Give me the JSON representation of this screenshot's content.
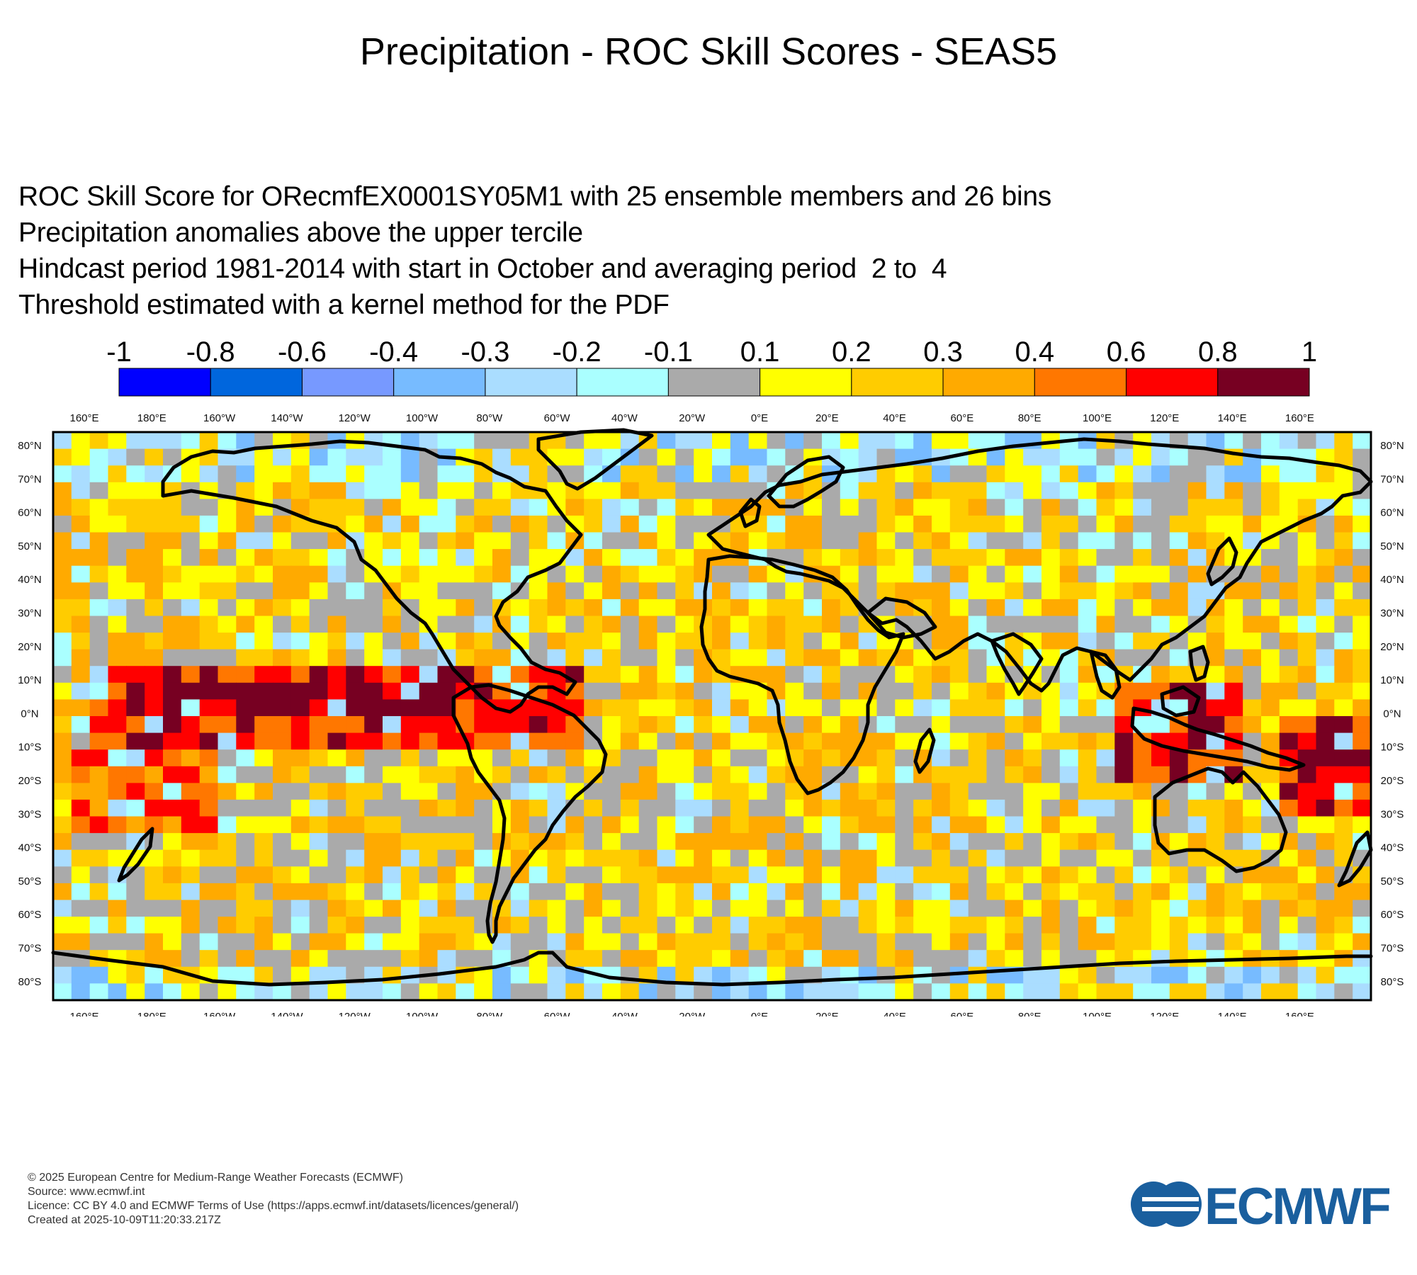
{
  "header": {
    "title": "Precipitation - ROC Skill Scores - SEAS5"
  },
  "description": {
    "line1": "ROC Skill Score for ORecmfEX0001SY05M1 with 25 ensemble members and 26 bins",
    "line2": "Precipitation anomalies above the upper tercile",
    "line3": "Hindcast period 1981-2014 with start in October and averaging period  2 to  4",
    "line4": "Threshold estimated with a kernel method for the PDF"
  },
  "legend": {
    "boundaries": [
      "-1",
      "-0.8",
      "-0.6",
      "-0.4",
      "-0.3",
      "-0.2",
      "-0.1",
      "0.1",
      "0.2",
      "0.3",
      "0.4",
      "0.6",
      "0.8",
      "1"
    ],
    "colors": [
      "#0000ff",
      "#0066dd",
      "#7799ff",
      "#77bbff",
      "#aaddff",
      "#aaffff",
      "#aaaaaa",
      "#ffff00",
      "#ffcc00",
      "#ffaa00",
      "#ff7700",
      "#ff0000",
      "#770022"
    ]
  },
  "axes": {
    "lon_labels": [
      "160°E",
      "180°E",
      "160°W",
      "140°W",
      "120°W",
      "100°W",
      "80°W",
      "60°W",
      "40°W",
      "20°W",
      "0°E",
      "20°E",
      "40°E",
      "60°E",
      "80°E",
      "100°E",
      "120°E",
      "140°E",
      "160°E"
    ],
    "lat_labels": [
      "80°N",
      "70°N",
      "60°N",
      "50°N",
      "40°N",
      "30°N",
      "20°N",
      "10°N",
      "0°N",
      "10°S",
      "20°S",
      "30°S",
      "40°S",
      "50°S",
      "60°S",
      "70°S",
      "80°S"
    ]
  },
  "map": {
    "projection": "cylindrical",
    "field": "ROC skill score",
    "grid_cells": [
      72,
      34
    ],
    "lon_range": [
      -210,
      180
    ],
    "lat_range": [
      -85,
      85
    ]
  },
  "footer": {
    "line1": "© 2025 European Centre for Medium-Range Weather Forecasts (ECMWF)",
    "line2": "Source: www.ecmwf.int",
    "line3": "Licence: CC BY 4.0 and ECMWF Terms of Use (https://apps.ecmwf.int/datasets/licences/general/)",
    "line4": "Created at 2025-10-09T11:20:33.217Z"
  },
  "logo": {
    "text": "ECMWF",
    "color": "#1a5f9e"
  }
}
